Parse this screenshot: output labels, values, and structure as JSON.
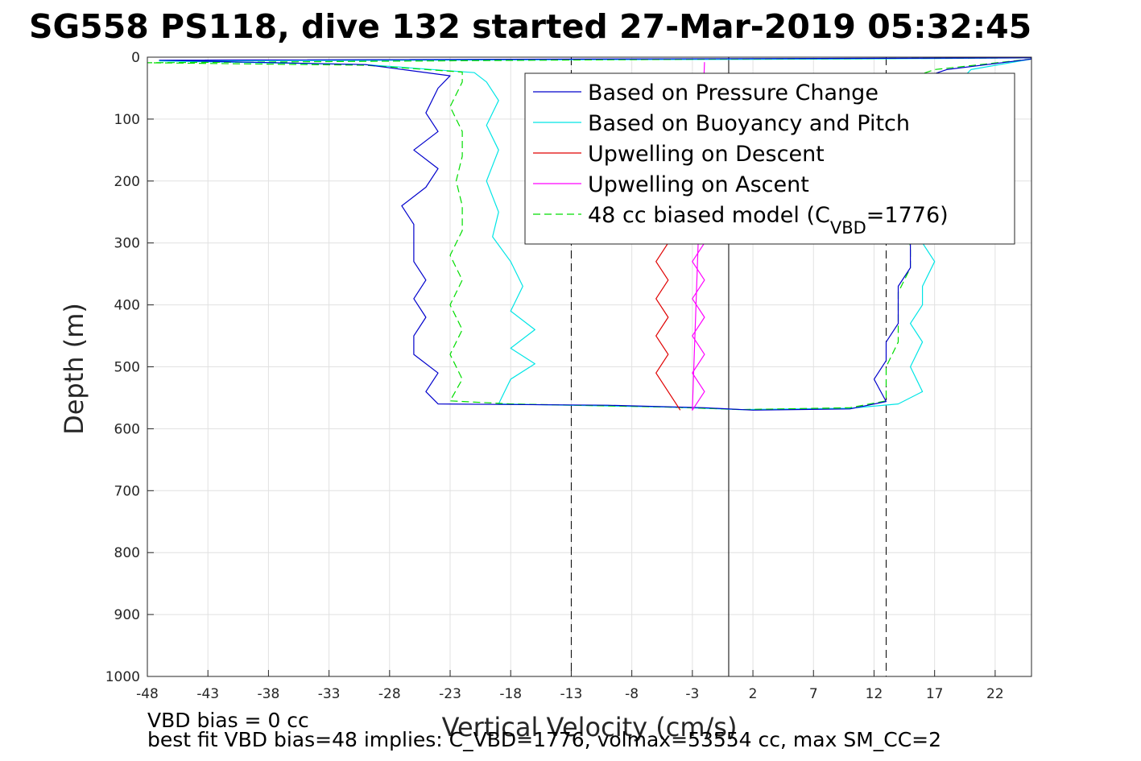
{
  "chart_data": {
    "type": "line",
    "title": "SG558 PS118, dive 132 started 27-Mar-2019 05:32:45",
    "xlabel": "Vertical Velocity (cm/s)",
    "ylabel": "Depth (m)",
    "xlim": [
      -48,
      25
    ],
    "ylim": [
      0,
      1000
    ],
    "y_reversed": true,
    "grid": true,
    "xticks": [
      -48,
      -43,
      -38,
      -33,
      -28,
      -23,
      -18,
      -13,
      -8,
      -3,
      2,
      7,
      12,
      17,
      22
    ],
    "yticks": [
      0,
      100,
      200,
      300,
      400,
      500,
      600,
      700,
      800,
      900,
      1000
    ],
    "legend": {
      "placement": "top-right",
      "entries": [
        {
          "label": "Based on Pressure Change",
          "color": "#0000cc",
          "style": "solid"
        },
        {
          "label": "Based on Buoyancy and Pitch",
          "color": "#00e5e5",
          "style": "solid"
        },
        {
          "label": "Upwelling on Descent",
          "color": "#e00000",
          "style": "solid"
        },
        {
          "label": "Upwelling on Ascent",
          "color": "#ff00ff",
          "style": "solid"
        },
        {
          "label": "48 cc biased model (C",
          "sub": "VBD",
          "suffix": "=1776)",
          "color": "#00dd00",
          "style": "dashed"
        }
      ]
    },
    "reference_lines": [
      {
        "x": -13,
        "style": "dashed"
      },
      {
        "x": 0,
        "style": "solid"
      },
      {
        "x": 13,
        "style": "dashed"
      }
    ],
    "series": [
      {
        "color": "#00e5e5",
        "style": "solid",
        "points": [
          [
            25,
            1
          ],
          [
            10,
            3
          ],
          [
            -47,
            6
          ],
          [
            -30,
            12
          ],
          [
            -21,
            25
          ],
          [
            -20,
            40
          ],
          [
            -19,
            70
          ],
          [
            -20,
            110
          ],
          [
            -19,
            150
          ],
          [
            -20,
            200
          ],
          [
            -19,
            250
          ],
          [
            -19.5,
            290
          ],
          [
            -18,
            330
          ],
          [
            -17,
            370
          ],
          [
            -18,
            410
          ],
          [
            -16,
            440
          ],
          [
            -18,
            470
          ],
          [
            -16,
            495
          ],
          [
            -18,
            520
          ],
          [
            -19,
            560
          ],
          [
            -5,
            565
          ],
          [
            1,
            569
          ],
          [
            10,
            567
          ],
          [
            14,
            560
          ],
          [
            16,
            540
          ],
          [
            15,
            500
          ],
          [
            16,
            460
          ],
          [
            15,
            430
          ],
          [
            16,
            400
          ],
          [
            16,
            370
          ],
          [
            17,
            330
          ],
          [
            16,
            300
          ],
          [
            19,
            40
          ],
          [
            20,
            20
          ],
          [
            25,
            3
          ]
        ]
      },
      {
        "color": "#00dd00",
        "style": "dashed",
        "points": [
          [
            25,
            1
          ],
          [
            0,
            3
          ],
          [
            -48,
            9
          ],
          [
            -30,
            13
          ],
          [
            -22,
            24
          ],
          [
            -22,
            40
          ],
          [
            -23,
            80
          ],
          [
            -22,
            120
          ],
          [
            -22,
            160
          ],
          [
            -22.5,
            200
          ],
          [
            -22,
            240
          ],
          [
            -22,
            280
          ],
          [
            -23,
            320
          ],
          [
            -22,
            360
          ],
          [
            -23,
            400
          ],
          [
            -22,
            440
          ],
          [
            -23,
            480
          ],
          [
            -22,
            520
          ],
          [
            -23,
            555
          ],
          [
            -18,
            560
          ],
          [
            -5,
            565
          ],
          [
            1,
            569
          ],
          [
            10,
            566
          ],
          [
            13,
            555
          ],
          [
            13,
            500
          ],
          [
            14,
            460
          ],
          [
            14,
            420
          ],
          [
            14,
            380
          ],
          [
            15,
            340
          ],
          [
            15,
            310
          ],
          [
            14,
            40
          ],
          [
            17,
            20
          ],
          [
            25,
            3
          ]
        ]
      },
      {
        "color": "#0000cc",
        "style": "solid",
        "points": [
          [
            25,
            1
          ],
          [
            10,
            2
          ],
          [
            -47,
            5
          ],
          [
            -30,
            12
          ],
          [
            -23,
            30
          ],
          [
            -24,
            50
          ],
          [
            -25,
            90
          ],
          [
            -24,
            120
          ],
          [
            -26,
            150
          ],
          [
            -24,
            180
          ],
          [
            -25,
            210
          ],
          [
            -27,
            240
          ],
          [
            -26,
            270
          ],
          [
            -26,
            300
          ],
          [
            -26,
            330
          ],
          [
            -25,
            360
          ],
          [
            -26,
            390
          ],
          [
            -25,
            420
          ],
          [
            -26,
            450
          ],
          [
            -26,
            480
          ],
          [
            -24,
            510
          ],
          [
            -25,
            540
          ],
          [
            -24,
            560
          ],
          [
            -10,
            562
          ],
          [
            -2,
            566
          ],
          [
            2,
            570
          ],
          [
            10,
            568
          ],
          [
            13,
            556
          ],
          [
            12,
            520
          ],
          [
            13,
            490
          ],
          [
            13,
            460
          ],
          [
            14,
            430
          ],
          [
            14,
            400
          ],
          [
            14,
            370
          ],
          [
            15,
            340
          ],
          [
            15,
            310
          ],
          [
            15,
            40
          ],
          [
            18,
            20
          ],
          [
            25,
            3
          ]
        ]
      },
      {
        "color": "#e00000",
        "style": "solid",
        "points": [
          [
            -5,
            300
          ],
          [
            -6,
            330
          ],
          [
            -5,
            360
          ],
          [
            -6,
            390
          ],
          [
            -5,
            420
          ],
          [
            -6,
            450
          ],
          [
            -5,
            480
          ],
          [
            -6,
            510
          ],
          [
            -5,
            540
          ],
          [
            -4,
            570
          ]
        ]
      },
      {
        "color": "#ff00ff",
        "style": "solid",
        "points": [
          [
            -2,
            300
          ],
          [
            -3,
            330
          ],
          [
            -2,
            360
          ],
          [
            -3,
            390
          ],
          [
            -2,
            420
          ],
          [
            -3,
            450
          ],
          [
            -2,
            480
          ],
          [
            -3,
            510
          ],
          [
            -2,
            540
          ],
          [
            -3,
            570
          ],
          [
            -2,
            8
          ]
        ]
      }
    ],
    "annotations": [
      "VBD bias = 0 cc",
      "best fit VBD bias=48 implies: C_VBD=1776, volmax=53554 cc, max SM_CC=2"
    ]
  }
}
